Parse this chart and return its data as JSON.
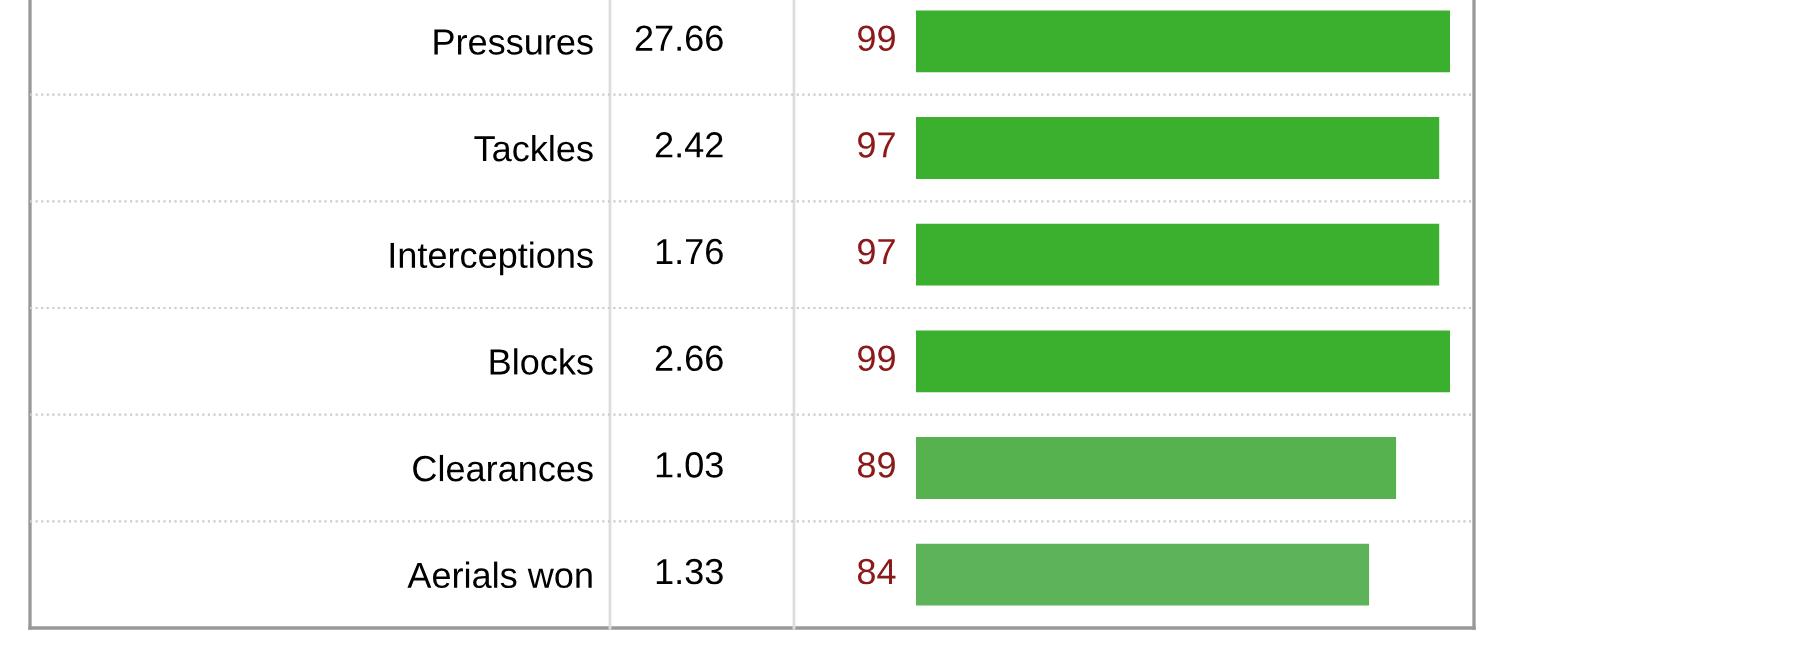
{
  "chart_data": {
    "type": "bar",
    "orientation": "horizontal",
    "categories": [
      "Pressures",
      "Tackles",
      "Interceptions",
      "Blocks",
      "Clearances",
      "Aerials won"
    ],
    "values": [
      99,
      97,
      97,
      99,
      89,
      84
    ],
    "colors": [
      "#3bb02f",
      "#3bb02f",
      "#3bb02f",
      "#3bb02f",
      "#56b24f",
      "#5db35a"
    ],
    "data_labels": true,
    "annotations": [
      "27.66",
      "2.42",
      "1.76",
      "2.66",
      "1.03",
      "1.33"
    ],
    "grid": false,
    "legend": false
  }
}
